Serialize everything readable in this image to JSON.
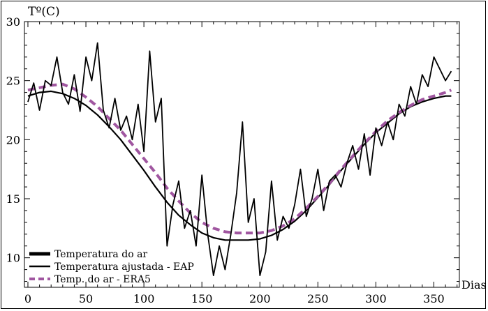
{
  "chart_data": {
    "type": "line",
    "title": "",
    "xlabel": "Dias",
    "ylabel": "Tº(C)",
    "xlim": [
      -3,
      372
    ],
    "ylim": [
      7.5,
      30
    ],
    "x_ticks": [
      0,
      50,
      100,
      150,
      200,
      250,
      300,
      350
    ],
    "y_ticks": [
      10,
      15,
      20,
      25,
      30
    ],
    "grid": false,
    "legend_position": "bottom-left",
    "series": [
      {
        "name": "Temperatura do ar",
        "style": "solid-thick",
        "color": "#000000",
        "x": [
          0,
          5,
          10,
          15,
          20,
          25,
          30,
          35,
          40,
          45,
          50,
          55,
          60,
          65,
          70,
          75,
          80,
          85,
          90,
          95,
          100,
          105,
          110,
          115,
          120,
          125,
          130,
          135,
          140,
          145,
          150,
          155,
          160,
          165,
          170,
          175,
          180,
          185,
          190,
          195,
          200,
          205,
          210,
          215,
          220,
          225,
          230,
          235,
          240,
          245,
          250,
          255,
          260,
          265,
          270,
          275,
          280,
          285,
          290,
          295,
          300,
          305,
          310,
          315,
          320,
          325,
          330,
          335,
          340,
          345,
          350,
          355,
          360,
          365
        ],
        "y": [
          23.2,
          24.8,
          22.5,
          25.0,
          24.6,
          27.0,
          24.0,
          23.0,
          25.5,
          22.4,
          27.0,
          25.0,
          28.2,
          22.5,
          21.0,
          23.5,
          20.8,
          22.0,
          20.0,
          23.0,
          19.0,
          27.5,
          21.5,
          23.5,
          11.0,
          14.5,
          16.5,
          12.5,
          14.0,
          11.0,
          17.0,
          12.0,
          8.5,
          11.0,
          9.0,
          12.0,
          15.5,
          21.5,
          13.0,
          15.0,
          8.5,
          10.5,
          16.5,
          11.5,
          13.5,
          12.5,
          14.5,
          17.5,
          13.5,
          15.0,
          17.5,
          14.0,
          16.5,
          17.0,
          16.0,
          18.0,
          19.5,
          17.5,
          20.5,
          17.0,
          21.0,
          19.5,
          21.5,
          20.0,
          23.0,
          22.0,
          24.5,
          23.0,
          25.5,
          24.5,
          27.0,
          26.0,
          25.0,
          25.8
        ]
      },
      {
        "name": "Temperatura ajustada - EAP",
        "style": "solid",
        "color": "#000000",
        "x": [
          0,
          10,
          20,
          30,
          40,
          50,
          60,
          70,
          80,
          90,
          100,
          110,
          120,
          130,
          140,
          150,
          160,
          170,
          180,
          190,
          200,
          210,
          220,
          230,
          240,
          250,
          260,
          270,
          280,
          290,
          300,
          310,
          320,
          330,
          340,
          350,
          360,
          365
        ],
        "y": [
          23.7,
          24.0,
          24.1,
          23.9,
          23.5,
          22.9,
          22.1,
          21.1,
          20.0,
          18.7,
          17.4,
          16.0,
          14.7,
          13.6,
          12.8,
          12.1,
          11.7,
          11.5,
          11.5,
          11.5,
          11.6,
          11.9,
          12.4,
          13.1,
          14.0,
          15.1,
          16.2,
          17.4,
          18.5,
          19.6,
          20.6,
          21.4,
          22.2,
          22.8,
          23.2,
          23.5,
          23.7,
          23.7
        ]
      },
      {
        "name": "Temp. do ar - ERA5",
        "style": "dashed",
        "color": "#a056a0",
        "x": [
          0,
          10,
          20,
          30,
          40,
          50,
          60,
          70,
          80,
          90,
          100,
          110,
          120,
          130,
          140,
          150,
          160,
          170,
          180,
          190,
          200,
          210,
          220,
          230,
          240,
          250,
          260,
          270,
          280,
          290,
          300,
          310,
          320,
          330,
          340,
          350,
          360,
          365
        ],
        "y": [
          24.2,
          24.4,
          24.6,
          24.7,
          24.3,
          23.6,
          22.8,
          21.8,
          20.8,
          19.6,
          18.4,
          17.2,
          15.9,
          14.8,
          13.8,
          13.0,
          12.5,
          12.2,
          12.1,
          12.1,
          12.1,
          12.3,
          12.7,
          13.3,
          14.2,
          15.2,
          16.3,
          17.5,
          18.6,
          19.7,
          20.7,
          21.6,
          22.3,
          22.9,
          23.4,
          23.7,
          24.0,
          24.2
        ]
      }
    ]
  }
}
